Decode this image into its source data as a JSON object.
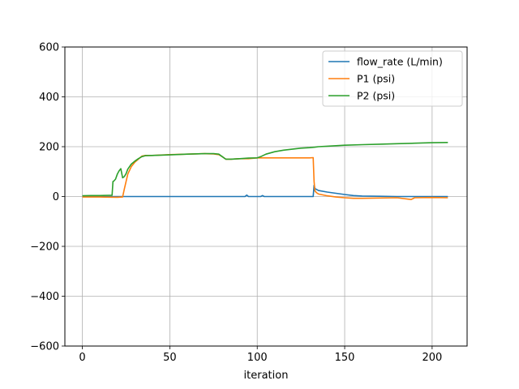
{
  "chart_data": {
    "type": "line",
    "title": "",
    "xlabel": "iteration",
    "ylabel": "",
    "xlim": [
      -10,
      220
    ],
    "ylim": [
      -600,
      600
    ],
    "xticks": [
      0,
      50,
      100,
      150,
      200
    ],
    "xtick_labels": [
      "0",
      "50",
      "100",
      "150",
      "200"
    ],
    "yticks": [
      -600,
      -400,
      -200,
      0,
      200,
      400,
      600
    ],
    "ytick_labels": [
      "−600",
      "−400",
      "−200",
      "0",
      "200",
      "400",
      "600"
    ],
    "grid": true,
    "legend_position": "top-right",
    "series": [
      {
        "name": "flow_rate (L/min)",
        "color": "#1f77b4",
        "x": [
          0,
          20,
          40,
          60,
          80,
          93,
          94,
          95,
          100,
          102,
          103,
          104,
          110,
          120,
          132,
          132.5,
          133,
          135,
          140,
          145,
          150,
          155,
          160,
          170,
          180,
          190,
          200,
          209
        ],
        "y": [
          0,
          0,
          0,
          0,
          0,
          0,
          6,
          0,
          0,
          0,
          4,
          0,
          0,
          0,
          0,
          45,
          32,
          24,
          18,
          13,
          8,
          4,
          2,
          1,
          0,
          0,
          0,
          0
        ]
      },
      {
        "name": "P1 (psi)",
        "color": "#ff7f0e",
        "x": [
          0,
          10,
          20,
          23,
          24,
          26,
          28,
          30,
          32,
          34,
          36,
          40,
          50,
          60,
          70,
          75,
          78,
          80,
          82,
          85,
          90,
          95,
          100,
          105,
          110,
          120,
          130,
          132,
          132.5,
          133,
          134,
          135,
          140,
          145,
          150,
          155,
          160,
          170,
          180,
          188,
          190,
          200,
          209
        ],
        "y": [
          -2,
          -2,
          -3,
          -2,
          30,
          90,
          120,
          138,
          150,
          162,
          165,
          165,
          168,
          170,
          172,
          171,
          168,
          160,
          150,
          150,
          152,
          152,
          155,
          155,
          155,
          155,
          155,
          156,
          60,
          22,
          15,
          10,
          3,
          -2,
          -5,
          -7,
          -7,
          -6,
          -5,
          -12,
          -5,
          -4,
          -5
        ]
      },
      {
        "name": "P2 (psi)",
        "color": "#2ca02c",
        "x": [
          0,
          5,
          10,
          15,
          17,
          17.5,
          18,
          19,
          20,
          21,
          22,
          23,
          24,
          25,
          26,
          28,
          30,
          32,
          34,
          36,
          40,
          50,
          60,
          70,
          75,
          78,
          80,
          82,
          85,
          90,
          95,
          100,
          102,
          105,
          110,
          115,
          120,
          125,
          130,
          133,
          135,
          140,
          150,
          160,
          170,
          180,
          190,
          200,
          209
        ],
        "y": [
          3,
          4,
          4,
          5,
          5,
          60,
          62,
          70,
          90,
          103,
          112,
          75,
          80,
          92,
          110,
          130,
          142,
          152,
          160,
          164,
          165,
          167,
          170,
          172,
          172,
          170,
          160,
          150,
          150,
          152,
          154,
          155,
          160,
          170,
          180,
          186,
          190,
          194,
          196,
          198,
          200,
          202,
          206,
          208,
          210,
          212,
          214,
          216,
          217
        ]
      }
    ]
  }
}
